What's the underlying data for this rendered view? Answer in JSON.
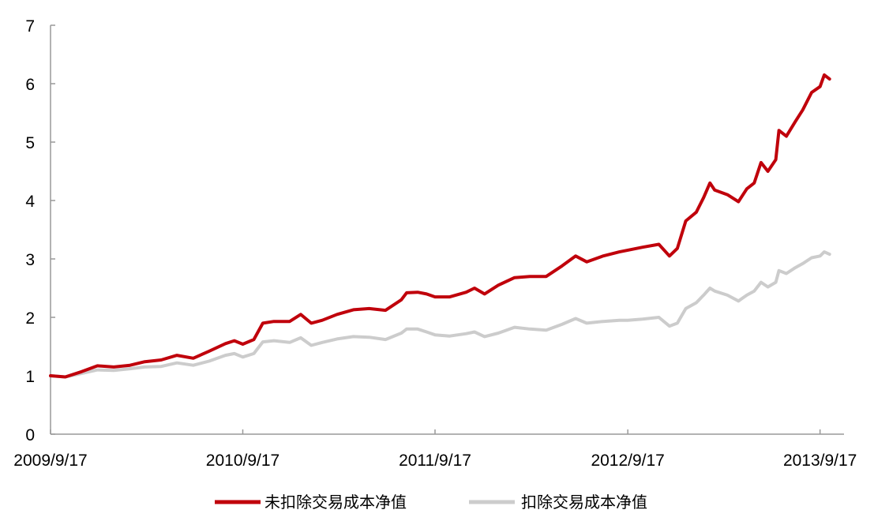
{
  "chart_data": {
    "type": "line",
    "title": "",
    "xlabel": "",
    "ylabel": "",
    "x_ticks": [
      "2009/9/17",
      "2010/9/17",
      "2011/9/17",
      "2012/9/17",
      "2013/9/17"
    ],
    "ylim": [
      0,
      7
    ],
    "y_ticks": [
      "0",
      "1",
      "2",
      "3",
      "4",
      "5",
      "6",
      "7"
    ],
    "grid": false,
    "legend_position": "bottom",
    "series": [
      {
        "name": "未扣除交易成本净值",
        "color": "#C0000B",
        "points": [
          [
            "2009/9/17",
            1.0
          ],
          [
            "2009/10/15",
            0.98
          ],
          [
            "2009/11/15",
            1.07
          ],
          [
            "2009/12/15",
            1.17
          ],
          [
            "2010/1/15",
            1.15
          ],
          [
            "2010/2/15",
            1.18
          ],
          [
            "2010/3/15",
            1.24
          ],
          [
            "2010/4/15",
            1.27
          ],
          [
            "2010/5/15",
            1.35
          ],
          [
            "2010/6/15",
            1.3
          ],
          [
            "2010/7/15",
            1.42
          ],
          [
            "2010/8/15",
            1.55
          ],
          [
            "2010/9/1",
            1.6
          ],
          [
            "2010/9/17",
            1.54
          ],
          [
            "2010/10/8",
            1.62
          ],
          [
            "2010/10/25",
            1.9
          ],
          [
            "2010/11/15",
            1.93
          ],
          [
            "2010/12/15",
            1.93
          ],
          [
            "2011/1/5",
            2.05
          ],
          [
            "2011/1/25",
            1.9
          ],
          [
            "2011/2/15",
            1.95
          ],
          [
            "2011/3/15",
            2.05
          ],
          [
            "2011/4/15",
            2.13
          ],
          [
            "2011/5/15",
            2.15
          ],
          [
            "2011/6/15",
            2.12
          ],
          [
            "2011/7/15",
            2.3
          ],
          [
            "2011/7/25",
            2.42
          ],
          [
            "2011/8/15",
            2.43
          ],
          [
            "2011/9/1",
            2.4
          ],
          [
            "2011/9/17",
            2.35
          ],
          [
            "2011/10/15",
            2.35
          ],
          [
            "2011/11/15",
            2.43
          ],
          [
            "2011/12/1",
            2.5
          ],
          [
            "2011/12/20",
            2.4
          ],
          [
            "2012/1/15",
            2.55
          ],
          [
            "2012/2/15",
            2.68
          ],
          [
            "2012/3/15",
            2.7
          ],
          [
            "2012/4/15",
            2.7
          ],
          [
            "2012/5/15",
            2.88
          ],
          [
            "2012/6/10",
            3.05
          ],
          [
            "2012/7/1",
            2.95
          ],
          [
            "2012/8/1",
            3.05
          ],
          [
            "2012/9/1",
            3.12
          ],
          [
            "2012/9/17",
            3.15
          ],
          [
            "2012/10/15",
            3.2
          ],
          [
            "2012/11/15",
            3.25
          ],
          [
            "2012/12/5",
            3.05
          ],
          [
            "2012/12/20",
            3.18
          ],
          [
            "2013/1/5",
            3.65
          ],
          [
            "2013/1/25",
            3.8
          ],
          [
            "2013/2/8",
            4.05
          ],
          [
            "2013/2/20",
            4.3
          ],
          [
            "2013/3/1",
            4.18
          ],
          [
            "2013/3/25",
            4.1
          ],
          [
            "2013/4/15",
            3.98
          ],
          [
            "2013/5/1",
            4.2
          ],
          [
            "2013/5/15",
            4.3
          ],
          [
            "2013/5/28",
            4.65
          ],
          [
            "2013/6/10",
            4.5
          ],
          [
            "2013/6/25",
            4.7
          ],
          [
            "2013/7/1",
            5.2
          ],
          [
            "2013/7/15",
            5.1
          ],
          [
            "2013/8/1",
            5.35
          ],
          [
            "2013/8/15",
            5.55
          ],
          [
            "2013/9/1",
            5.85
          ],
          [
            "2013/9/17",
            5.95
          ],
          [
            "2013/9/25",
            6.15
          ],
          [
            "2013/10/5",
            6.08
          ]
        ]
      },
      {
        "name": "扣除交易成本净值",
        "color": "#CCCCCC",
        "points": [
          [
            "2009/9/17",
            1.0
          ],
          [
            "2009/10/15",
            0.98
          ],
          [
            "2009/11/15",
            1.04
          ],
          [
            "2009/12/15",
            1.1
          ],
          [
            "2010/1/15",
            1.09
          ],
          [
            "2010/2/15",
            1.12
          ],
          [
            "2010/3/15",
            1.15
          ],
          [
            "2010/4/15",
            1.16
          ],
          [
            "2010/5/15",
            1.22
          ],
          [
            "2010/6/15",
            1.18
          ],
          [
            "2010/7/15",
            1.25
          ],
          [
            "2010/8/15",
            1.35
          ],
          [
            "2010/9/1",
            1.38
          ],
          [
            "2010/9/17",
            1.32
          ],
          [
            "2010/10/8",
            1.38
          ],
          [
            "2010/10/25",
            1.58
          ],
          [
            "2010/11/15",
            1.6
          ],
          [
            "2010/12/15",
            1.57
          ],
          [
            "2011/1/5",
            1.65
          ],
          [
            "2011/1/25",
            1.52
          ],
          [
            "2011/2/15",
            1.57
          ],
          [
            "2011/3/15",
            1.63
          ],
          [
            "2011/4/15",
            1.67
          ],
          [
            "2011/5/15",
            1.66
          ],
          [
            "2011/6/15",
            1.62
          ],
          [
            "2011/7/15",
            1.73
          ],
          [
            "2011/7/25",
            1.8
          ],
          [
            "2011/8/15",
            1.8
          ],
          [
            "2011/9/1",
            1.75
          ],
          [
            "2011/9/17",
            1.7
          ],
          [
            "2011/10/15",
            1.68
          ],
          [
            "2011/11/15",
            1.72
          ],
          [
            "2011/12/1",
            1.75
          ],
          [
            "2011/12/20",
            1.67
          ],
          [
            "2012/1/15",
            1.73
          ],
          [
            "2012/2/15",
            1.83
          ],
          [
            "2012/3/15",
            1.8
          ],
          [
            "2012/4/15",
            1.78
          ],
          [
            "2012/5/15",
            1.88
          ],
          [
            "2012/6/10",
            1.98
          ],
          [
            "2012/7/1",
            1.9
          ],
          [
            "2012/8/1",
            1.93
          ],
          [
            "2012/9/1",
            1.95
          ],
          [
            "2012/9/17",
            1.95
          ],
          [
            "2012/10/15",
            1.97
          ],
          [
            "2012/11/15",
            2.0
          ],
          [
            "2012/12/5",
            1.85
          ],
          [
            "2012/12/20",
            1.9
          ],
          [
            "2013/1/5",
            2.15
          ],
          [
            "2013/1/25",
            2.25
          ],
          [
            "2013/2/8",
            2.38
          ],
          [
            "2013/2/20",
            2.5
          ],
          [
            "2013/3/1",
            2.45
          ],
          [
            "2013/3/25",
            2.38
          ],
          [
            "2013/4/15",
            2.28
          ],
          [
            "2013/5/1",
            2.38
          ],
          [
            "2013/5/15",
            2.45
          ],
          [
            "2013/5/28",
            2.6
          ],
          [
            "2013/6/10",
            2.52
          ],
          [
            "2013/6/25",
            2.6
          ],
          [
            "2013/7/1",
            2.8
          ],
          [
            "2013/7/15",
            2.75
          ],
          [
            "2013/8/1",
            2.85
          ],
          [
            "2013/8/15",
            2.92
          ],
          [
            "2013/9/1",
            3.02
          ],
          [
            "2013/9/17",
            3.05
          ],
          [
            "2013/9/25",
            3.12
          ],
          [
            "2013/10/5",
            3.08
          ]
        ]
      }
    ]
  }
}
